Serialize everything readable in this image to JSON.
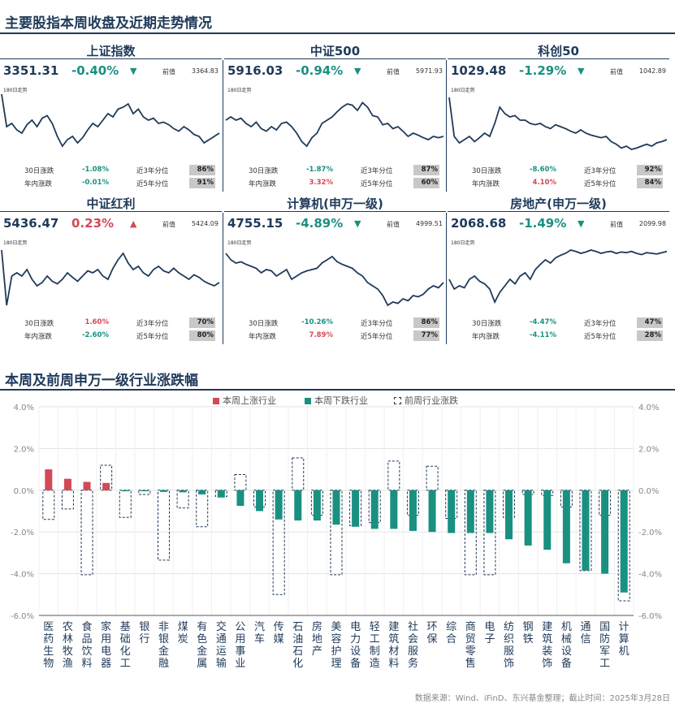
{
  "title_main": "主要股指本周收盘及近期走势情况",
  "title_bar": "本周及前周申万一级行业涨跌幅",
  "colors": {
    "up": "#d14a56",
    "down": "#1a9080",
    "navy": "#1f3a5a"
  },
  "panels": [
    {
      "name": "上证指数",
      "close": "3351.31",
      "chg": "-0.40%",
      "dir": "down",
      "arrow": "▼",
      "prev_label": "前值",
      "prev": "3364.83",
      "trend_label": "180日走势",
      "r30_label": "30日涨跌",
      "r30": "-1.08%",
      "ytd_label": "年内涨跌",
      "ytd": "-0.01%",
      "p3_label": "近3年分位",
      "p3": "86%",
      "p5_label": "近5年分位",
      "p5": "91%"
    },
    {
      "name": "中证500",
      "close": "5916.03",
      "chg": "-0.94%",
      "dir": "down",
      "arrow": "▼",
      "prev_label": "前值",
      "prev": "5971.93",
      "trend_label": "180日走势",
      "r30_label": "30日涨跌",
      "r30": "-1.87%",
      "ytd_label": "年内涨跌",
      "ytd": "3.32%",
      "p3_label": "近3年分位",
      "p3": "87%",
      "p5_label": "近5年分位",
      "p5": "60%"
    },
    {
      "name": "科创50",
      "close": "1029.48",
      "chg": "-1.29%",
      "dir": "down",
      "arrow": "▼",
      "prev_label": "前值",
      "prev": "1042.89",
      "trend_label": "180日走势",
      "r30_label": "30日涨跌",
      "r30": "-8.60%",
      "ytd_label": "年内涨跌",
      "ytd": "4.10%",
      "p3_label": "近3年分位",
      "p3": "92%",
      "p5_label": "近5年分位",
      "p5": "84%"
    },
    {
      "name": "中证红利",
      "close": "5436.47",
      "chg": "0.23%",
      "dir": "up",
      "arrow": "▲",
      "prev_label": "前值",
      "prev": "5424.09",
      "trend_label": "180日走势",
      "r30_label": "30日涨跌",
      "r30": "1.60%",
      "ytd_label": "年内涨跌",
      "ytd": "-2.60%",
      "p3_label": "近3年分位",
      "p3": "70%",
      "p5_label": "近5年分位",
      "p5": "80%"
    },
    {
      "name": "计算机(申万一级)",
      "close": "4755.15",
      "chg": "-4.89%",
      "dir": "down",
      "arrow": "▼",
      "prev_label": "前值",
      "prev": "4999.51",
      "trend_label": "180日走势",
      "r30_label": "30日涨跌",
      "r30": "-10.26%",
      "ytd_label": "年内涨跌",
      "ytd": "7.89%",
      "p3_label": "近3年分位",
      "p3": "86%",
      "p5_label": "近5年分位",
      "p5": "77%"
    },
    {
      "name": "房地产(申万一级)",
      "close": "2068.68",
      "chg": "-1.49%",
      "dir": "down",
      "arrow": "▼",
      "prev_label": "前值",
      "prev": "2099.98",
      "trend_label": "180日走势",
      "r30_label": "30日涨跌",
      "r30": "-4.47%",
      "ytd_label": "年内涨跌",
      "ytd": "-4.11%",
      "p3_label": "近3年分位",
      "p3": "47%",
      "p5_label": "近5年分位",
      "p5": "28%"
    }
  ],
  "chart_data": {
    "type": "bar",
    "categories": [
      "医药生物",
      "农林牧渔",
      "食品饮料",
      "家用电器",
      "基础化工",
      "银行",
      "非银金融",
      "煤炭",
      "有色金属",
      "交通运输",
      "公用事业",
      "汽车",
      "传媒",
      "石油石化",
      "房地产",
      "美容护理",
      "电力设备",
      "轻工制造",
      "建筑材料",
      "社会服务",
      "环保",
      "综合",
      "商贸零售",
      "电子",
      "纺织服饰",
      "钢铁",
      "建筑装饰",
      "机械设备",
      "通信",
      "国防军工",
      "计算机"
    ],
    "series": [
      {
        "name": "本周上涨行业",
        "values": [
          1.0,
          0.55,
          0.4,
          0.35,
          0,
          0,
          0,
          0,
          0,
          0,
          0,
          0,
          0,
          0,
          0,
          0,
          0,
          0,
          0,
          0,
          0,
          0,
          0,
          0,
          0,
          0,
          0,
          0,
          0,
          0,
          0
        ]
      },
      {
        "name": "本周下跌行业",
        "values": [
          0,
          0,
          0,
          0,
          -0.05,
          -0.05,
          -0.08,
          -0.1,
          -0.2,
          -0.35,
          -0.75,
          -1.0,
          -1.4,
          -1.45,
          -1.45,
          -1.65,
          -1.75,
          -1.85,
          -1.85,
          -1.95,
          -2.0,
          -2.05,
          -2.05,
          -2.05,
          -2.35,
          -2.65,
          -2.85,
          -3.5,
          -3.85,
          -4.0,
          -4.9
        ]
      },
      {
        "name": "前周行业涨跌",
        "values": [
          -1.4,
          -0.9,
          -4.05,
          1.2,
          -1.3,
          -0.2,
          -3.35,
          -0.85,
          -1.75,
          -0.3,
          0.75,
          -0.8,
          -5.0,
          1.55,
          -1.2,
          -4.05,
          -1.7,
          -1.55,
          1.4,
          -1.2,
          1.15,
          -1.35,
          -4.05,
          -4.05,
          -1.3,
          -0.2,
          -0.25,
          -0.8,
          -3.85,
          -1.2,
          -5.3
        ]
      }
    ],
    "yticks": [
      "4.0%",
      "2.0%",
      "0.0%",
      "-2.0%",
      "-4.0%",
      "-6.0%"
    ],
    "ylim": [
      -6,
      4
    ],
    "grid": true,
    "legend_position": "top"
  },
  "source": "数据来源：Wind、iFinD、东兴基金整理；截止时间：2025年3月28日"
}
